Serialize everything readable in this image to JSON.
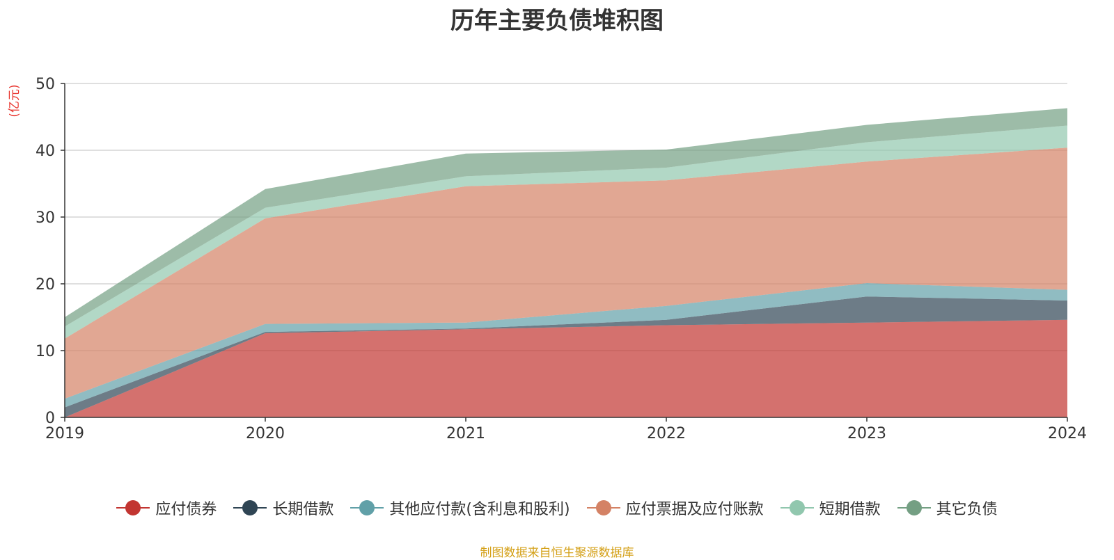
{
  "chart_data": {
    "type": "area",
    "stacked": true,
    "title": "历年主要负债堆积图",
    "ylabel": "(亿元)",
    "xlabel": "",
    "categories": [
      "2019",
      "2020",
      "2021",
      "2022",
      "2023",
      "2024"
    ],
    "ylim": [
      0,
      50
    ],
    "yticks": [
      0,
      10,
      20,
      30,
      40,
      50
    ],
    "grid": true,
    "legend_position": "bottom",
    "series": [
      {
        "name": "应付债券",
        "color": "#c23531",
        "values": [
          0.0,
          12.6,
          13.2,
          13.8,
          14.2,
          14.6
        ]
      },
      {
        "name": "长期借款",
        "color": "#2f4554",
        "values": [
          1.5,
          0.2,
          0.1,
          0.8,
          3.9,
          2.9
        ]
      },
      {
        "name": "其他应付款(含利息和股利)",
        "color": "#61a0a8",
        "values": [
          1.3,
          1.2,
          0.9,
          2.1,
          2.0,
          1.6
        ]
      },
      {
        "name": "应付票据及应付账款",
        "color": "#d48265",
        "values": [
          9.0,
          15.8,
          20.4,
          18.8,
          18.2,
          21.3
        ]
      },
      {
        "name": "短期借款",
        "color": "#91c7ae",
        "values": [
          1.8,
          1.6,
          1.5,
          1.9,
          2.9,
          3.3
        ]
      },
      {
        "name": "其它负债",
        "color": "#749f83",
        "values": [
          1.4,
          2.8,
          3.4,
          2.7,
          2.6,
          2.6
        ]
      }
    ]
  },
  "footer": {
    "source": "制图数据来自恒生聚源数据库"
  }
}
